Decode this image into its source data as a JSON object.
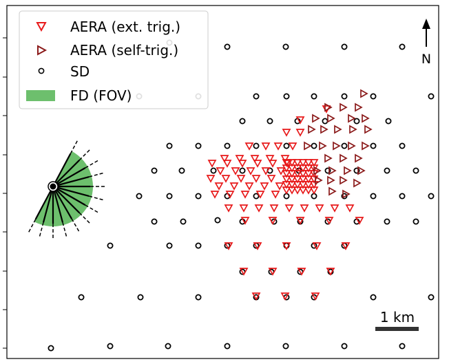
{
  "legend": {
    "items": [
      {
        "label": "AERA (ext. trig.)",
        "marker": "triangle-down",
        "color": "#e8191a"
      },
      {
        "label": "AERA (self-trig.)",
        "marker": "triangle-right",
        "color": "#8b1a1a"
      },
      {
        "label": "SD",
        "marker": "circle",
        "color": "#000000"
      },
      {
        "label": "FD (FOV)",
        "marker": "patch",
        "color": "#5cb85c"
      }
    ]
  },
  "north_label": "N",
  "scale_bar_label": "1 km",
  "colors": {
    "aera_ext": "#e8191a",
    "aera_self": "#8b1a1a",
    "sd": "#000000",
    "fd_fov": "#6dbf6d"
  }
}
